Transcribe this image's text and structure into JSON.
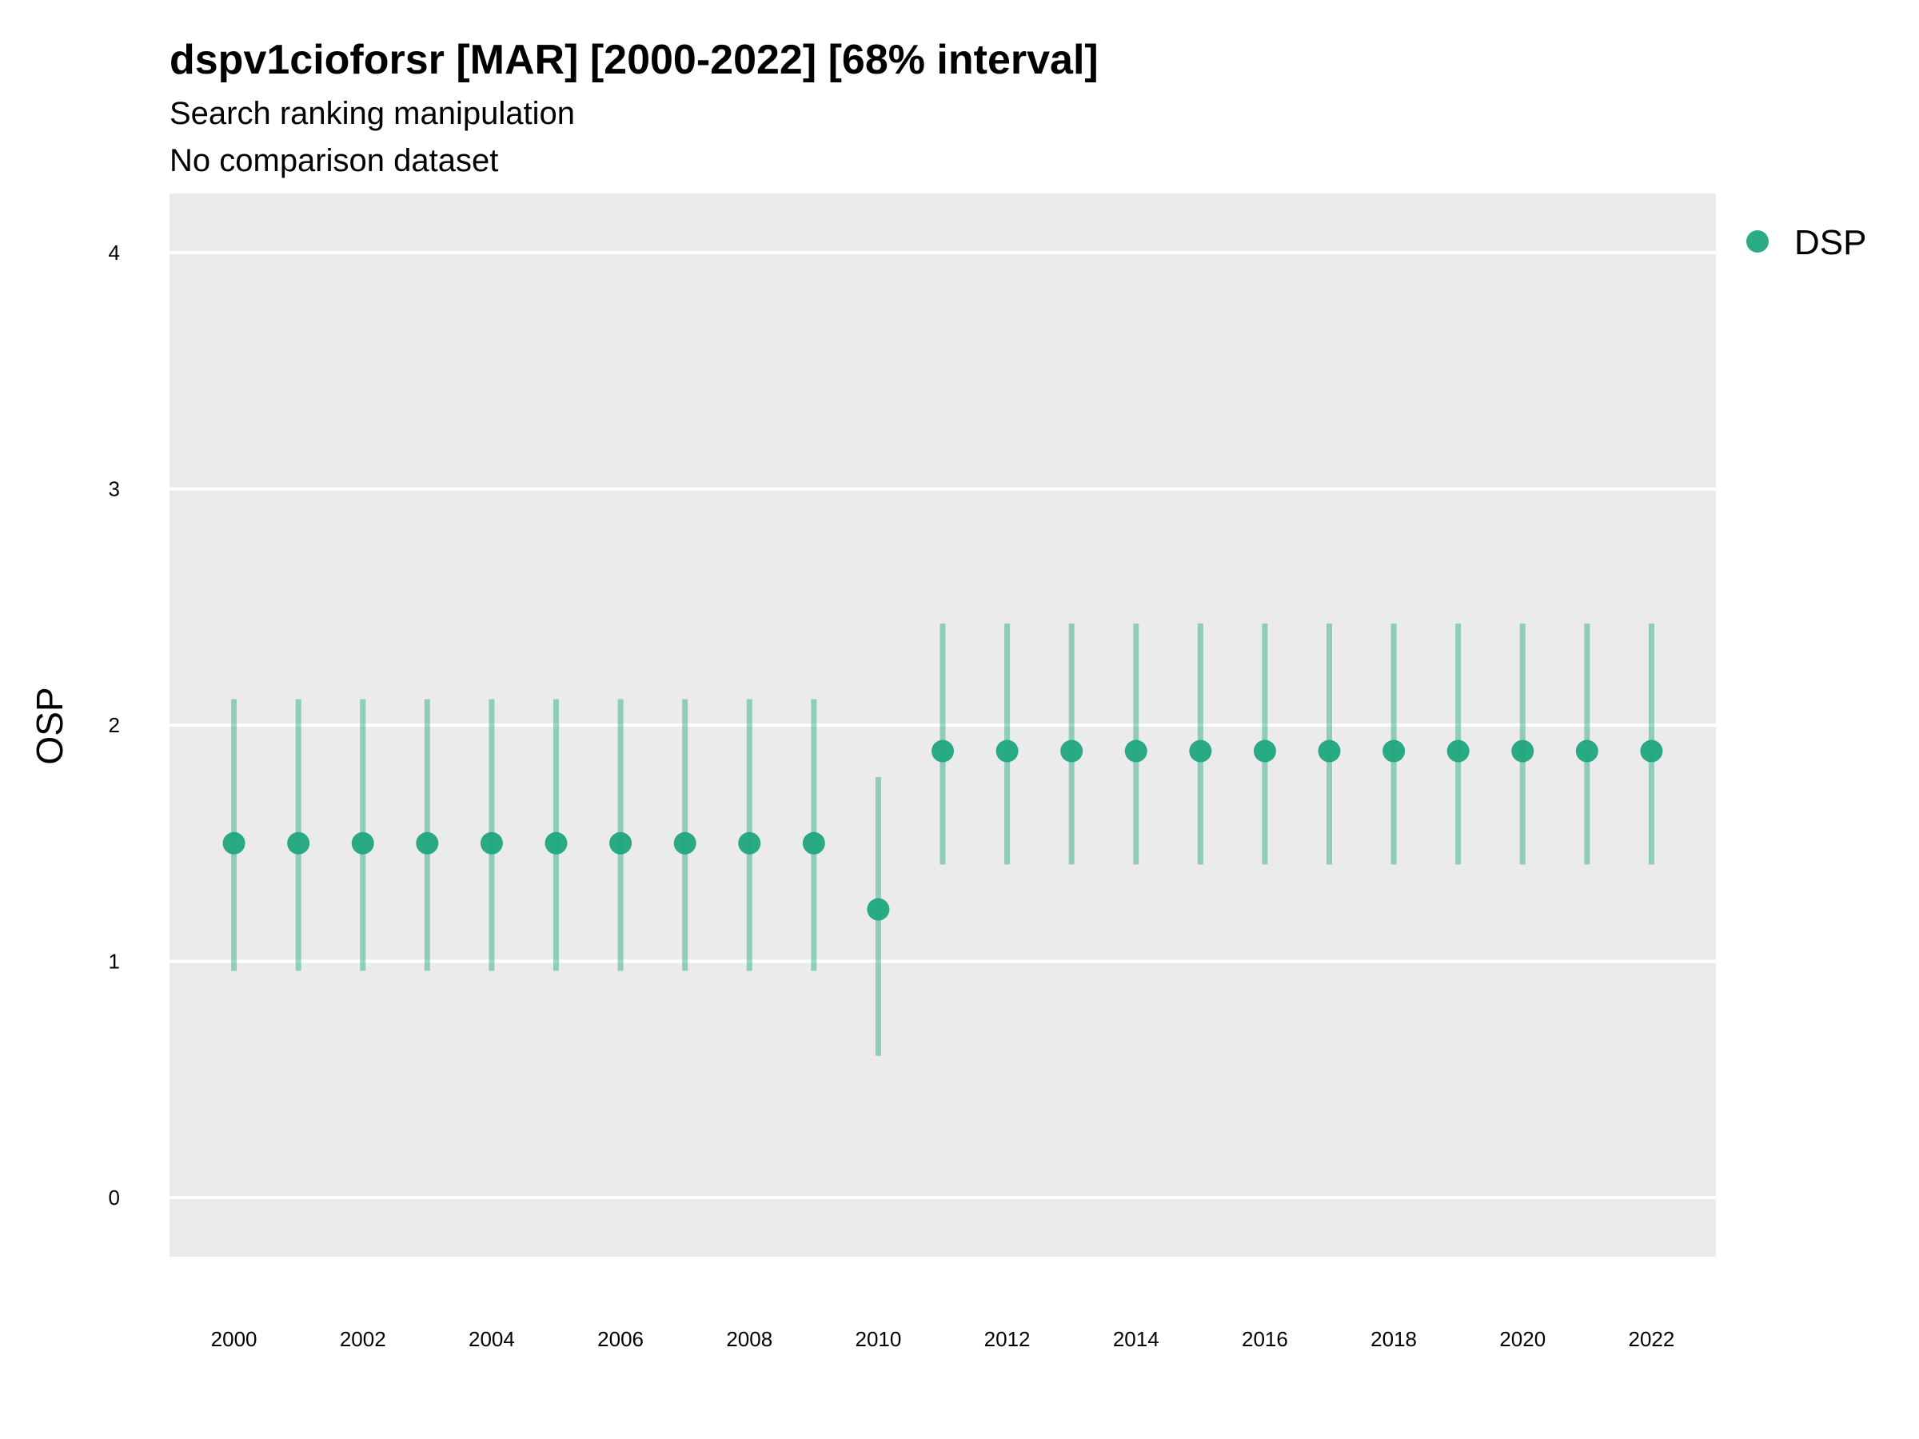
{
  "chart_data": {
    "type": "scatter",
    "title": "dspv1cioforsr [MAR] [2000-2022] [68% interval]",
    "subtitle": "Search ranking manipulation",
    "subtitle2": "No comparison dataset",
    "xlabel": "",
    "ylabel": "OSP",
    "xlim": [
      1999,
      2023
    ],
    "ylim": [
      -0.25,
      4.25
    ],
    "x_ticks": [
      "2000",
      "2002",
      "2004",
      "2006",
      "2008",
      "2010",
      "2012",
      "2014",
      "2016",
      "2018",
      "2020",
      "2022"
    ],
    "y_ticks": [
      "0",
      "1",
      "2",
      "3",
      "4"
    ],
    "grid": true,
    "legend_position": "right-top",
    "color": "#1fa77f",
    "interval_color": "#1fa77f",
    "series": [
      {
        "name": "DSP",
        "x": [
          2000,
          2001,
          2002,
          2003,
          2004,
          2005,
          2006,
          2007,
          2008,
          2009,
          2010,
          2011,
          2012,
          2013,
          2014,
          2015,
          2016,
          2017,
          2018,
          2019,
          2020,
          2021,
          2022
        ],
        "y": [
          1.5,
          1.5,
          1.5,
          1.5,
          1.5,
          1.5,
          1.5,
          1.5,
          1.5,
          1.5,
          1.22,
          1.89,
          1.89,
          1.89,
          1.89,
          1.89,
          1.89,
          1.89,
          1.89,
          1.89,
          1.89,
          1.89,
          1.89
        ],
        "lower": [
          0.96,
          0.96,
          0.96,
          0.96,
          0.96,
          0.96,
          0.96,
          0.96,
          0.96,
          0.96,
          0.6,
          1.41,
          1.41,
          1.41,
          1.41,
          1.41,
          1.41,
          1.41,
          1.41,
          1.41,
          1.41,
          1.41,
          1.41
        ],
        "upper": [
          2.11,
          2.11,
          2.11,
          2.11,
          2.11,
          2.11,
          2.11,
          2.11,
          2.11,
          2.11,
          1.78,
          2.43,
          2.43,
          2.43,
          2.43,
          2.43,
          2.43,
          2.43,
          2.43,
          2.43,
          2.43,
          2.43,
          2.43
        ]
      }
    ]
  }
}
